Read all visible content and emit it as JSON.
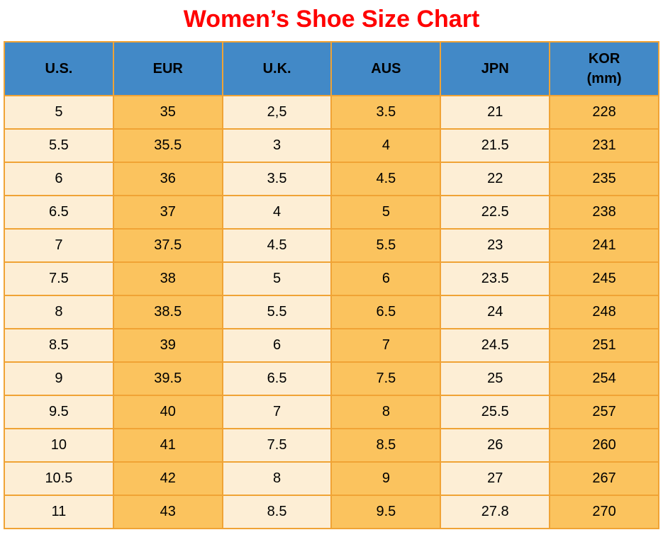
{
  "title": "Women’s Shoe Size Chart",
  "colors": {
    "title_red": "#ff0000",
    "header_blue": "#4289c7",
    "cell_cream": "#fdeed5",
    "cell_orange": "#fbc35e",
    "border_orange": "#f0a335",
    "text_black": "#000000",
    "background": "#ffffff"
  },
  "chart_data": {
    "type": "table",
    "title": "Women’s Shoe Size Chart",
    "columns": [
      {
        "label": "U.S."
      },
      {
        "label": "EUR"
      },
      {
        "label": "U.K."
      },
      {
        "label": "AUS"
      },
      {
        "label": "JPN"
      },
      {
        "label": "KOR",
        "sublabel": "(mm)"
      }
    ],
    "column_fill_pattern": [
      "cream",
      "orange",
      "cream",
      "orange",
      "cream",
      "orange"
    ],
    "rows": [
      [
        "5",
        "35",
        "2,5",
        "3.5",
        "21",
        "228"
      ],
      [
        "5.5",
        "35.5",
        "3",
        "4",
        "21.5",
        "231"
      ],
      [
        "6",
        "36",
        "3.5",
        "4.5",
        "22",
        "235"
      ],
      [
        "6.5",
        "37",
        "4",
        "5",
        "22.5",
        "238"
      ],
      [
        "7",
        "37.5",
        "4.5",
        "5.5",
        "23",
        "241"
      ],
      [
        "7.5",
        "38",
        "5",
        "6",
        "23.5",
        "245"
      ],
      [
        "8",
        "38.5",
        "5.5",
        "6.5",
        "24",
        "248"
      ],
      [
        "8.5",
        "39",
        "6",
        "7",
        "24.5",
        "251"
      ],
      [
        "9",
        "39.5",
        "6.5",
        "7.5",
        "25",
        "254"
      ],
      [
        "9.5",
        "40",
        "7",
        "8",
        "25.5",
        "257"
      ],
      [
        "10",
        "41",
        "7.5",
        "8.5",
        "26",
        "260"
      ],
      [
        "10.5",
        "42",
        "8",
        "9",
        "27",
        "267"
      ],
      [
        "11",
        "43",
        "8.5",
        "9.5",
        "27.8",
        "270"
      ]
    ]
  }
}
